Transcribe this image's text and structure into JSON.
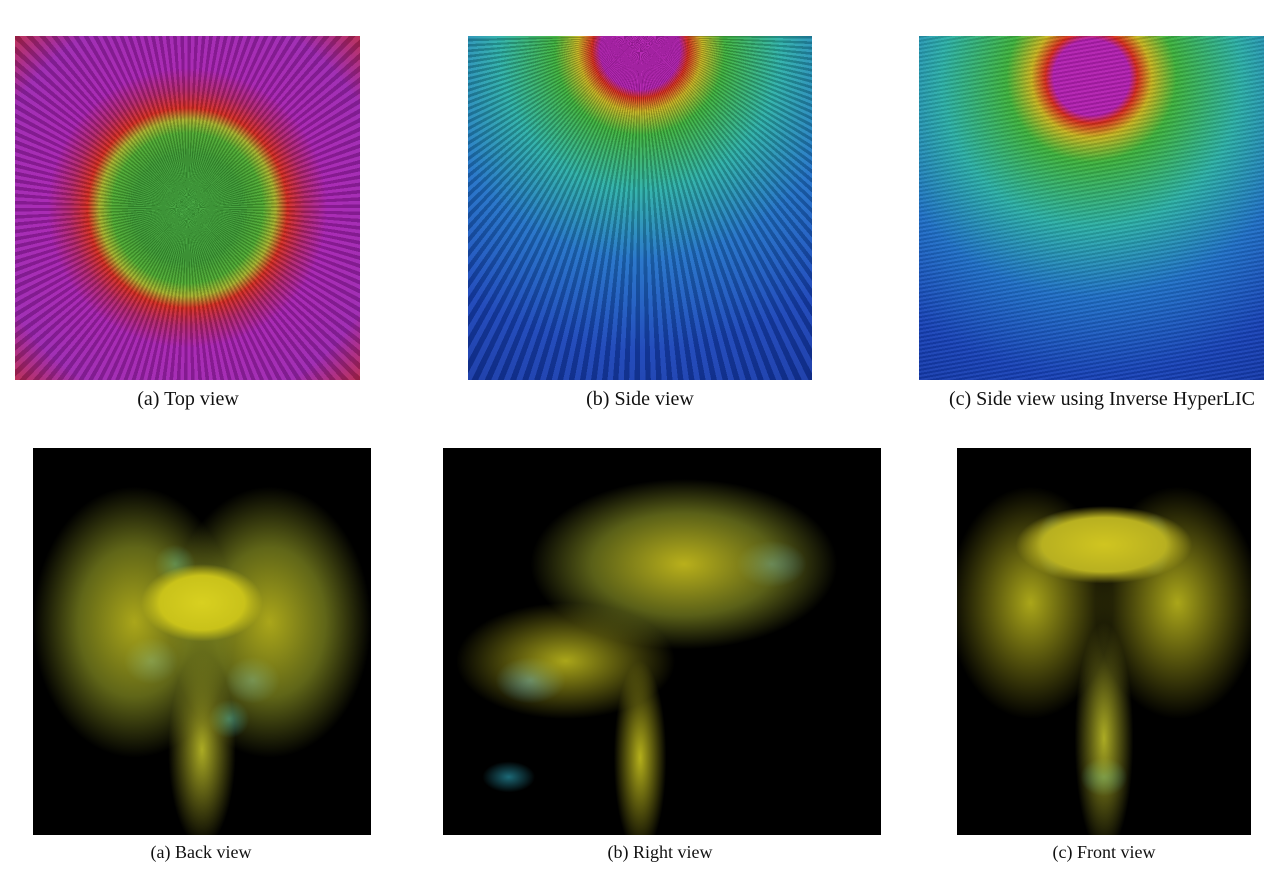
{
  "figures": [
    {
      "panels": [
        {
          "caption": "(a) Top view"
        },
        {
          "caption": "(b) Side view"
        },
        {
          "caption": "(c) Side view using Inverse HyperLIC"
        }
      ]
    },
    {
      "panels": [
        {
          "caption": "(a) Back view"
        },
        {
          "caption": "(b) Right view"
        },
        {
          "caption": "(c) Front view"
        }
      ]
    }
  ]
}
